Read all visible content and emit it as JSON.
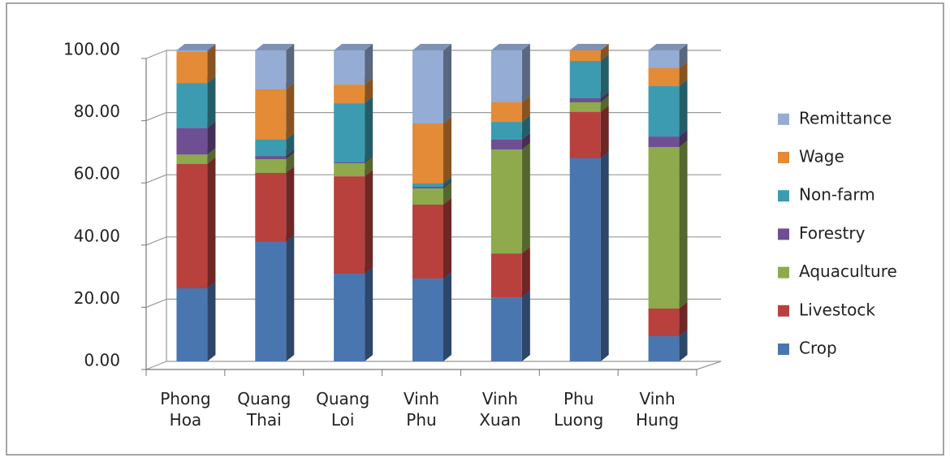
{
  "chart_data": {
    "type": "bar3d_stacked",
    "categories": [
      "Phong Hoa",
      "Quang Thai",
      "Quang Loi",
      "Vinh Phu",
      "Vinh Xuan",
      "Phu Luong",
      "Vinh Hung"
    ],
    "series": [
      {
        "name": "Crop",
        "color": "#4a76b0",
        "values": [
          23.5,
          38.4,
          28.2,
          26.6,
          20.6,
          65.3,
          8.1
        ]
      },
      {
        "name": "Livestock",
        "color": "#b8413e",
        "values": [
          40,
          22.2,
          31.3,
          23.8,
          14.1,
          14.9,
          8.9
        ]
      },
      {
        "name": "Aquaculture",
        "color": "#8eaa4c",
        "values": [
          3,
          4.4,
          4.2,
          5.2,
          33.4,
          3.1,
          51.9
        ]
      },
      {
        "name": "Forestry",
        "color": "#6f4f93",
        "values": [
          8.5,
          1,
          0.3,
          0.5,
          3.2,
          1.3,
          3.4
        ]
      },
      {
        "name": "Non-farm",
        "color": "#3c9bb0",
        "values": [
          14.5,
          5.3,
          19,
          1.1,
          5.7,
          12,
          16.2
        ]
      },
      {
        "name": "Wage",
        "color": "#e38b36",
        "values": [
          10,
          16.2,
          6,
          19.3,
          6.3,
          3.4,
          5.8
        ]
      },
      {
        "name": "Remittance",
        "color": "#95acd4",
        "values": [
          0.5,
          12.5,
          11,
          23.5,
          16.7,
          0,
          5.7
        ]
      }
    ],
    "ylim": [
      0,
      100
    ],
    "yticks": [
      {
        "value": 0,
        "label": "0.00"
      },
      {
        "value": 20,
        "label": "20.00"
      },
      {
        "value": 40,
        "label": "40.00"
      },
      {
        "value": 60,
        "label": "60.00"
      },
      {
        "value": 80,
        "label": "80.00"
      },
      {
        "value": 100,
        "label": "100.00"
      }
    ],
    "grid": true,
    "legend": "right"
  }
}
